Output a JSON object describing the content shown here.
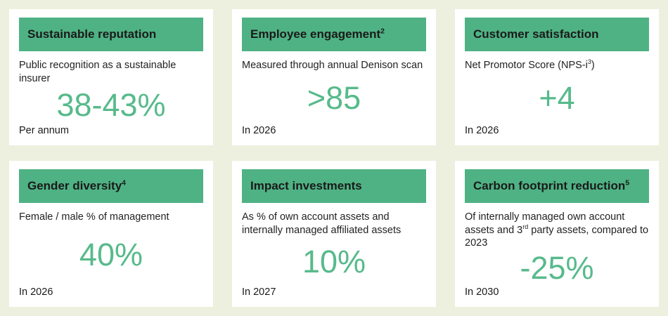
{
  "colors": {
    "page_background": "#edf0de",
    "card_background": "#ffffff",
    "header_bar_green": "#4fb284",
    "value_green": "#57ba8b",
    "title_text": "#1a1a1a",
    "body_text": "#222222"
  },
  "cards": [
    {
      "title": [
        {
          "t": "Sustainable reputation"
        }
      ],
      "description": [
        {
          "t": "Public recognition as a sustainable insurer"
        }
      ],
      "value": "38-43%",
      "footer": "Per annum"
    },
    {
      "title": [
        {
          "t": "Employee engagement"
        },
        {
          "t": "2",
          "sup": true
        }
      ],
      "description": [
        {
          "t": "Measured through annual Denison scan"
        }
      ],
      "value": ">85",
      "footer": "In 2026"
    },
    {
      "title": [
        {
          "t": "Customer satisfaction"
        }
      ],
      "description": [
        {
          "t": "Net Promotor Score (NPS-i"
        },
        {
          "t": "3",
          "sup": true
        },
        {
          "t": ")"
        }
      ],
      "value": "+4",
      "footer": "In 2026"
    },
    {
      "title": [
        {
          "t": "Gender diversity"
        },
        {
          "t": "4",
          "sup": true
        }
      ],
      "description": [
        {
          "t": "Female / male % of management"
        }
      ],
      "value": "40%",
      "footer": "In 2026"
    },
    {
      "title": [
        {
          "t": "Impact investments"
        }
      ],
      "description": [
        {
          "t": "As % of own account assets and internally managed affiliated assets"
        }
      ],
      "value": "10%",
      "footer": "In 2027"
    },
    {
      "title": [
        {
          "t": "Carbon footprint reduction"
        },
        {
          "t": "5",
          "sup": true
        }
      ],
      "description": [
        {
          "t": "Of internally managed own account assets and 3"
        },
        {
          "t": "rd",
          "sup": true
        },
        {
          "t": " party assets, compared to 2023"
        }
      ],
      "value": "-25%",
      "footer": "In 2030"
    }
  ]
}
